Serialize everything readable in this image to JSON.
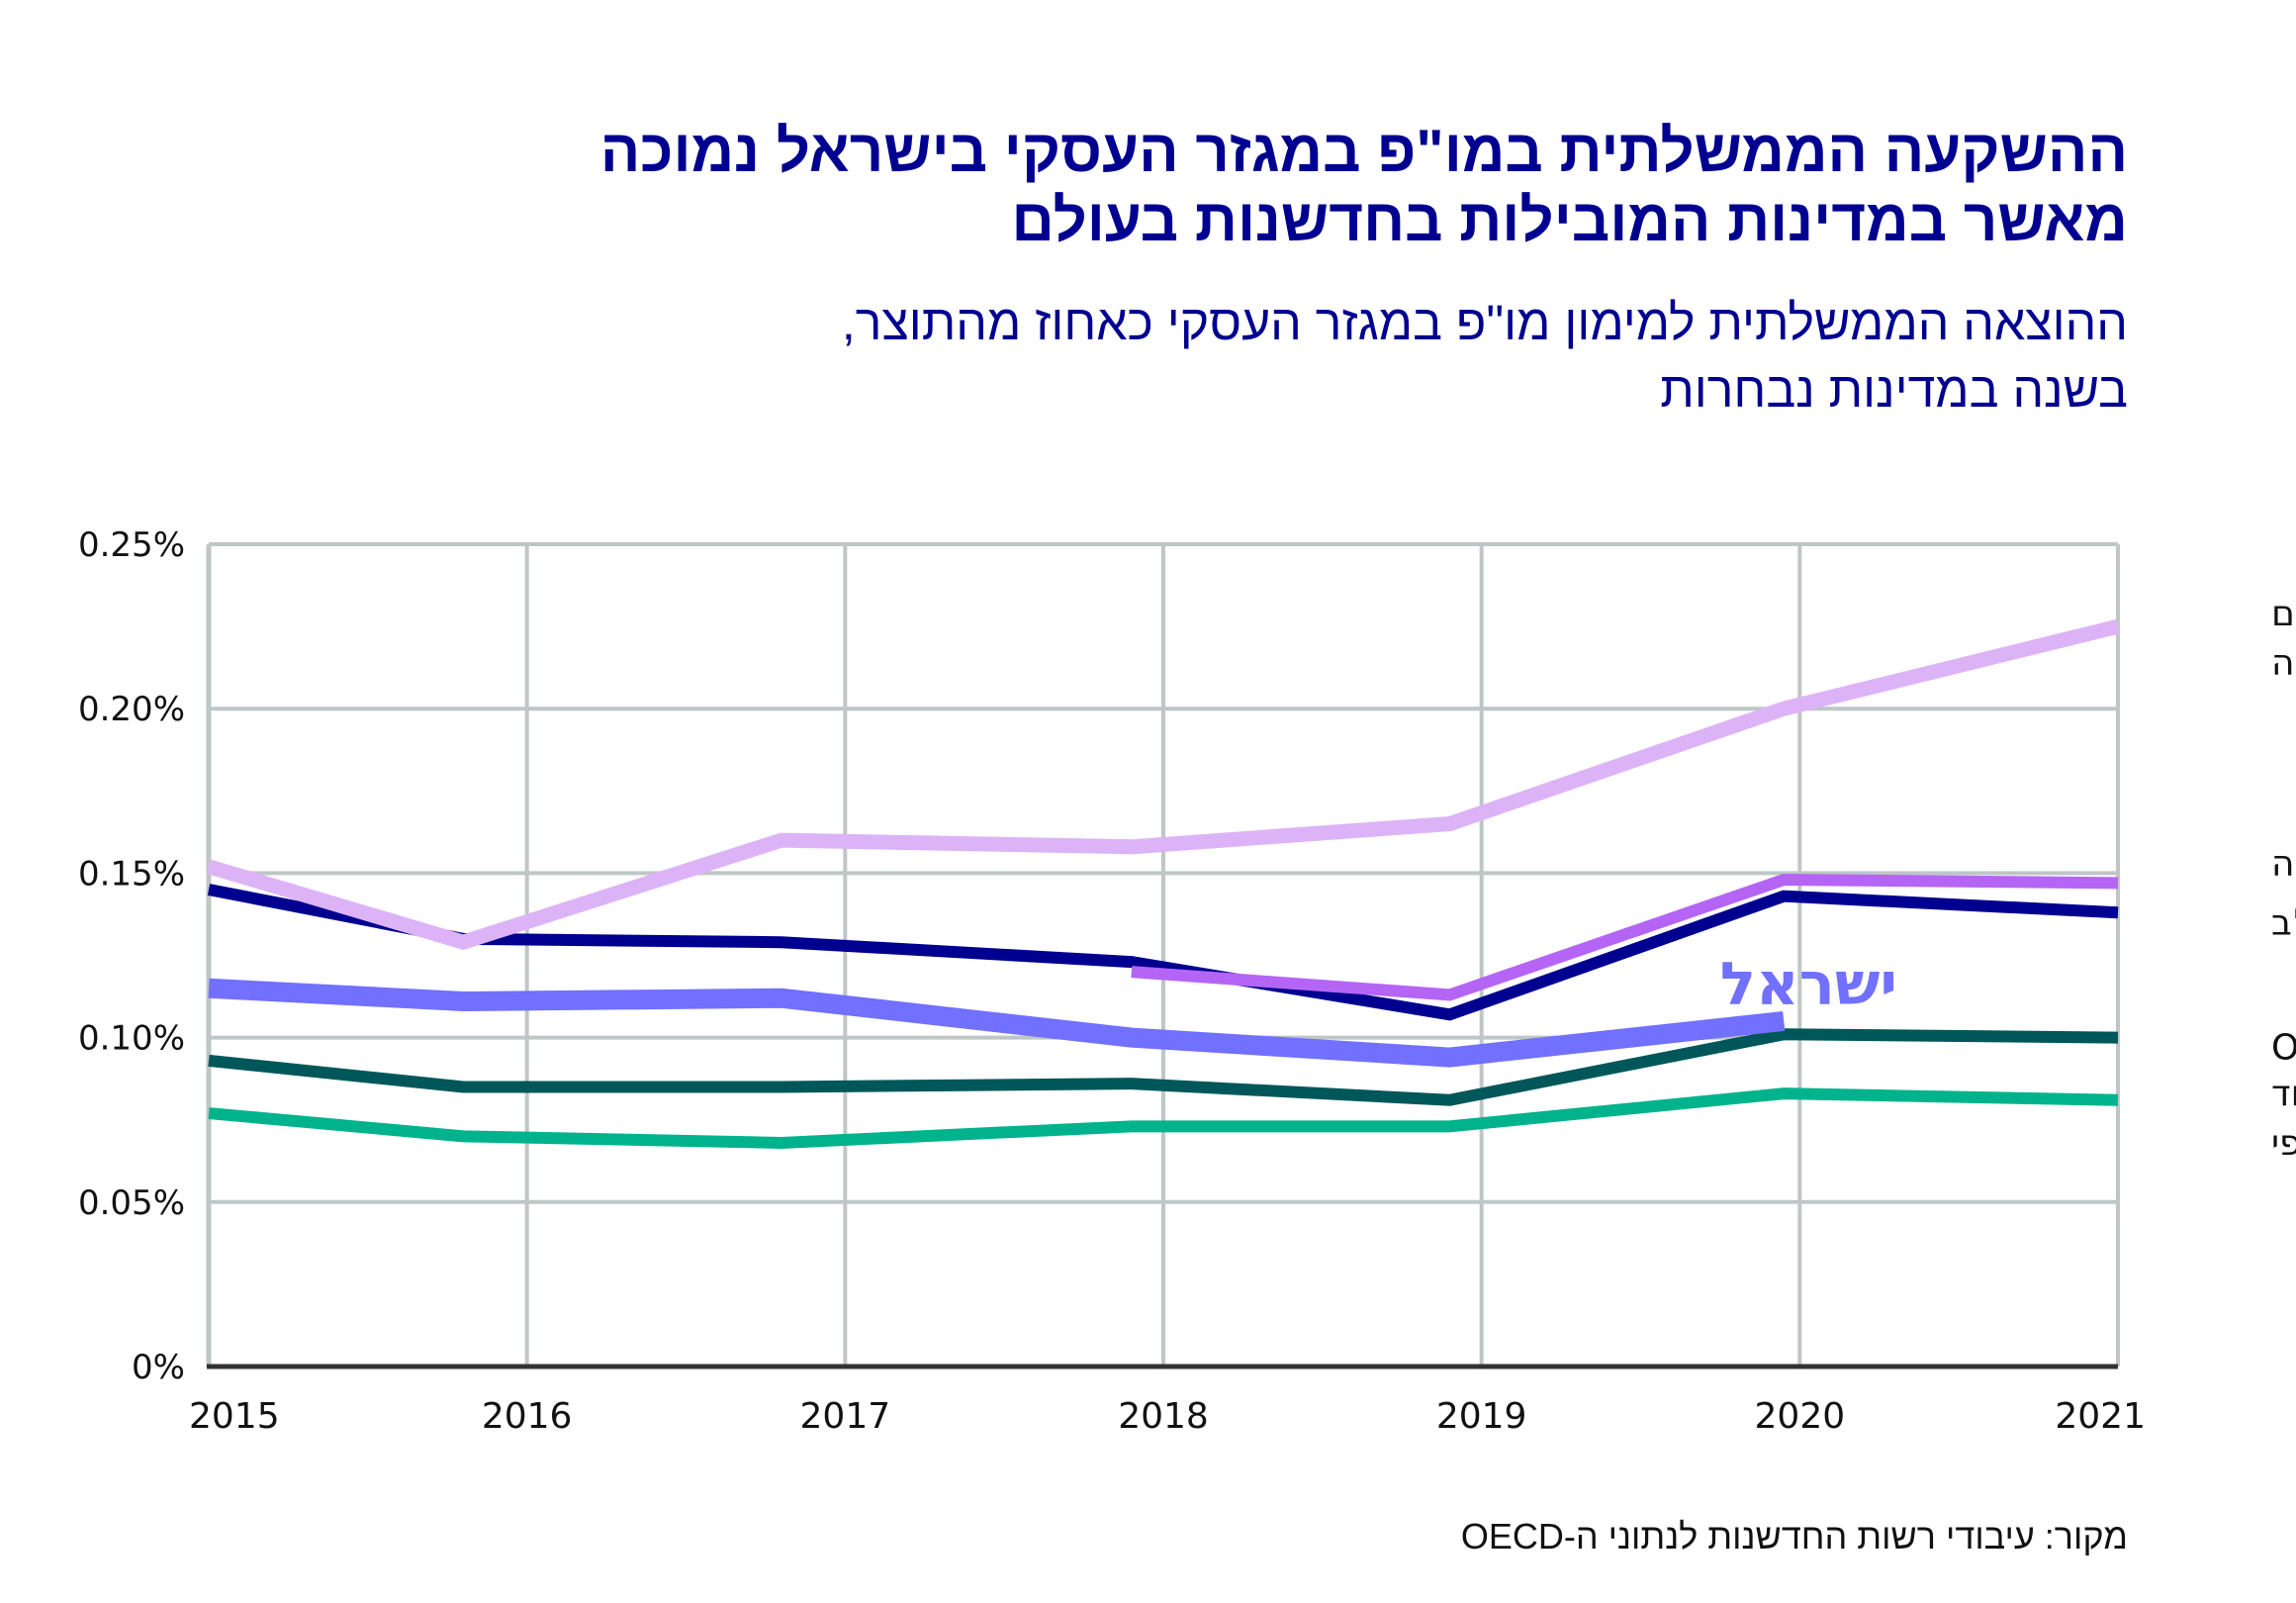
{
  "title": {
    "line1": "ההשקעה הממשלתית במו\"פ במגזר העסקי בישראל נמוכה",
    "line2": "מאשר במדינות המובילות בחדשנות בעולם"
  },
  "subtitle": {
    "line1": "ההוצאה הממשלתית למימון מו\"פ במגזר העסקי כאחוז מהתוצר,",
    "line2": "בשנה במדינות נבחרות"
  },
  "source": "מקור: עיבודי רשות החדשנות לנתוני ה-OECD",
  "chart_data": {
    "type": "line",
    "title": "ההשקעה הממשלתית במו\"פ במגזר העסקי בישראל נמוכה מאשר במדינות המובילות בחדשנות בעולם",
    "subtitle": "ההוצאה הממשלתית למימון מו\"פ במגזר העסקי כאחוז מהתוצר, בשנה במדינות נבחרות",
    "xlabel": "",
    "ylabel": "",
    "x": [
      2015,
      2016,
      2017,
      2018,
      2019,
      2020,
      2021
    ],
    "x_plot_positions": [
      2015.0,
      2015.8,
      2016.8,
      2017.9,
      2018.9,
      2019.95,
      2021.0
    ],
    "xlim": [
      2015,
      2021
    ],
    "ylim": [
      0,
      0.25
    ],
    "y_ticks": [
      0,
      0.05,
      0.1,
      0.15,
      0.2,
      0.25
    ],
    "y_tick_labels": [
      "0%",
      "0.05%",
      "0.10%",
      "0.15%",
      "0.20%",
      "0.25%"
    ],
    "x_tick_labels": [
      "2015",
      "2016",
      "2017",
      "2018",
      "2019",
      "2020",
      "2021"
    ],
    "y_unit": "% of GDP",
    "grid": true,
    "legend": "direct labels at right end of lines",
    "series": [
      {
        "name": "דרום קוריאה",
        "label_lines": [
          "דרום",
          "קוריאה"
        ],
        "color": "#DDB3F8",
        "values": [
          0.152,
          0.129,
          0.16,
          0.158,
          0.165,
          0.2,
          0.225
        ]
      },
      {
        "name": "בריטניה",
        "label_lines": [
          "בריטניה"
        ],
        "color": "#B565F5",
        "values": [
          null,
          null,
          null,
          0.12,
          0.113,
          0.148,
          0.147
        ]
      },
      {
        "name": "ארה\"ב",
        "label_lines": [
          "ארה\"ב"
        ],
        "color": "#000090",
        "values": [
          0.145,
          0.13,
          0.129,
          0.123,
          0.107,
          0.143,
          0.138
        ]
      },
      {
        "name": "ישראל",
        "label_lines": [
          "ישראל"
        ],
        "color": "#7170FF",
        "values": [
          0.115,
          0.111,
          0.112,
          0.1,
          0.094,
          0.105,
          null
        ],
        "emphasis": true
      },
      {
        "name": "OECD",
        "label_lines": [
          "OECD"
        ],
        "color": "#00575A",
        "values": [
          0.093,
          0.085,
          0.085,
          0.086,
          0.081,
          0.101,
          0.1
        ]
      },
      {
        "name": "איחוד אירופי",
        "label_lines": [
          "איחוד",
          "אירופי"
        ],
        "color": "#00B38C",
        "values": [
          0.077,
          0.07,
          0.068,
          0.073,
          0.073,
          0.083,
          0.081
        ]
      }
    ],
    "annotations": [
      {
        "text": "ישראל",
        "series": "ישראל",
        "near_year": 2020
      }
    ]
  }
}
